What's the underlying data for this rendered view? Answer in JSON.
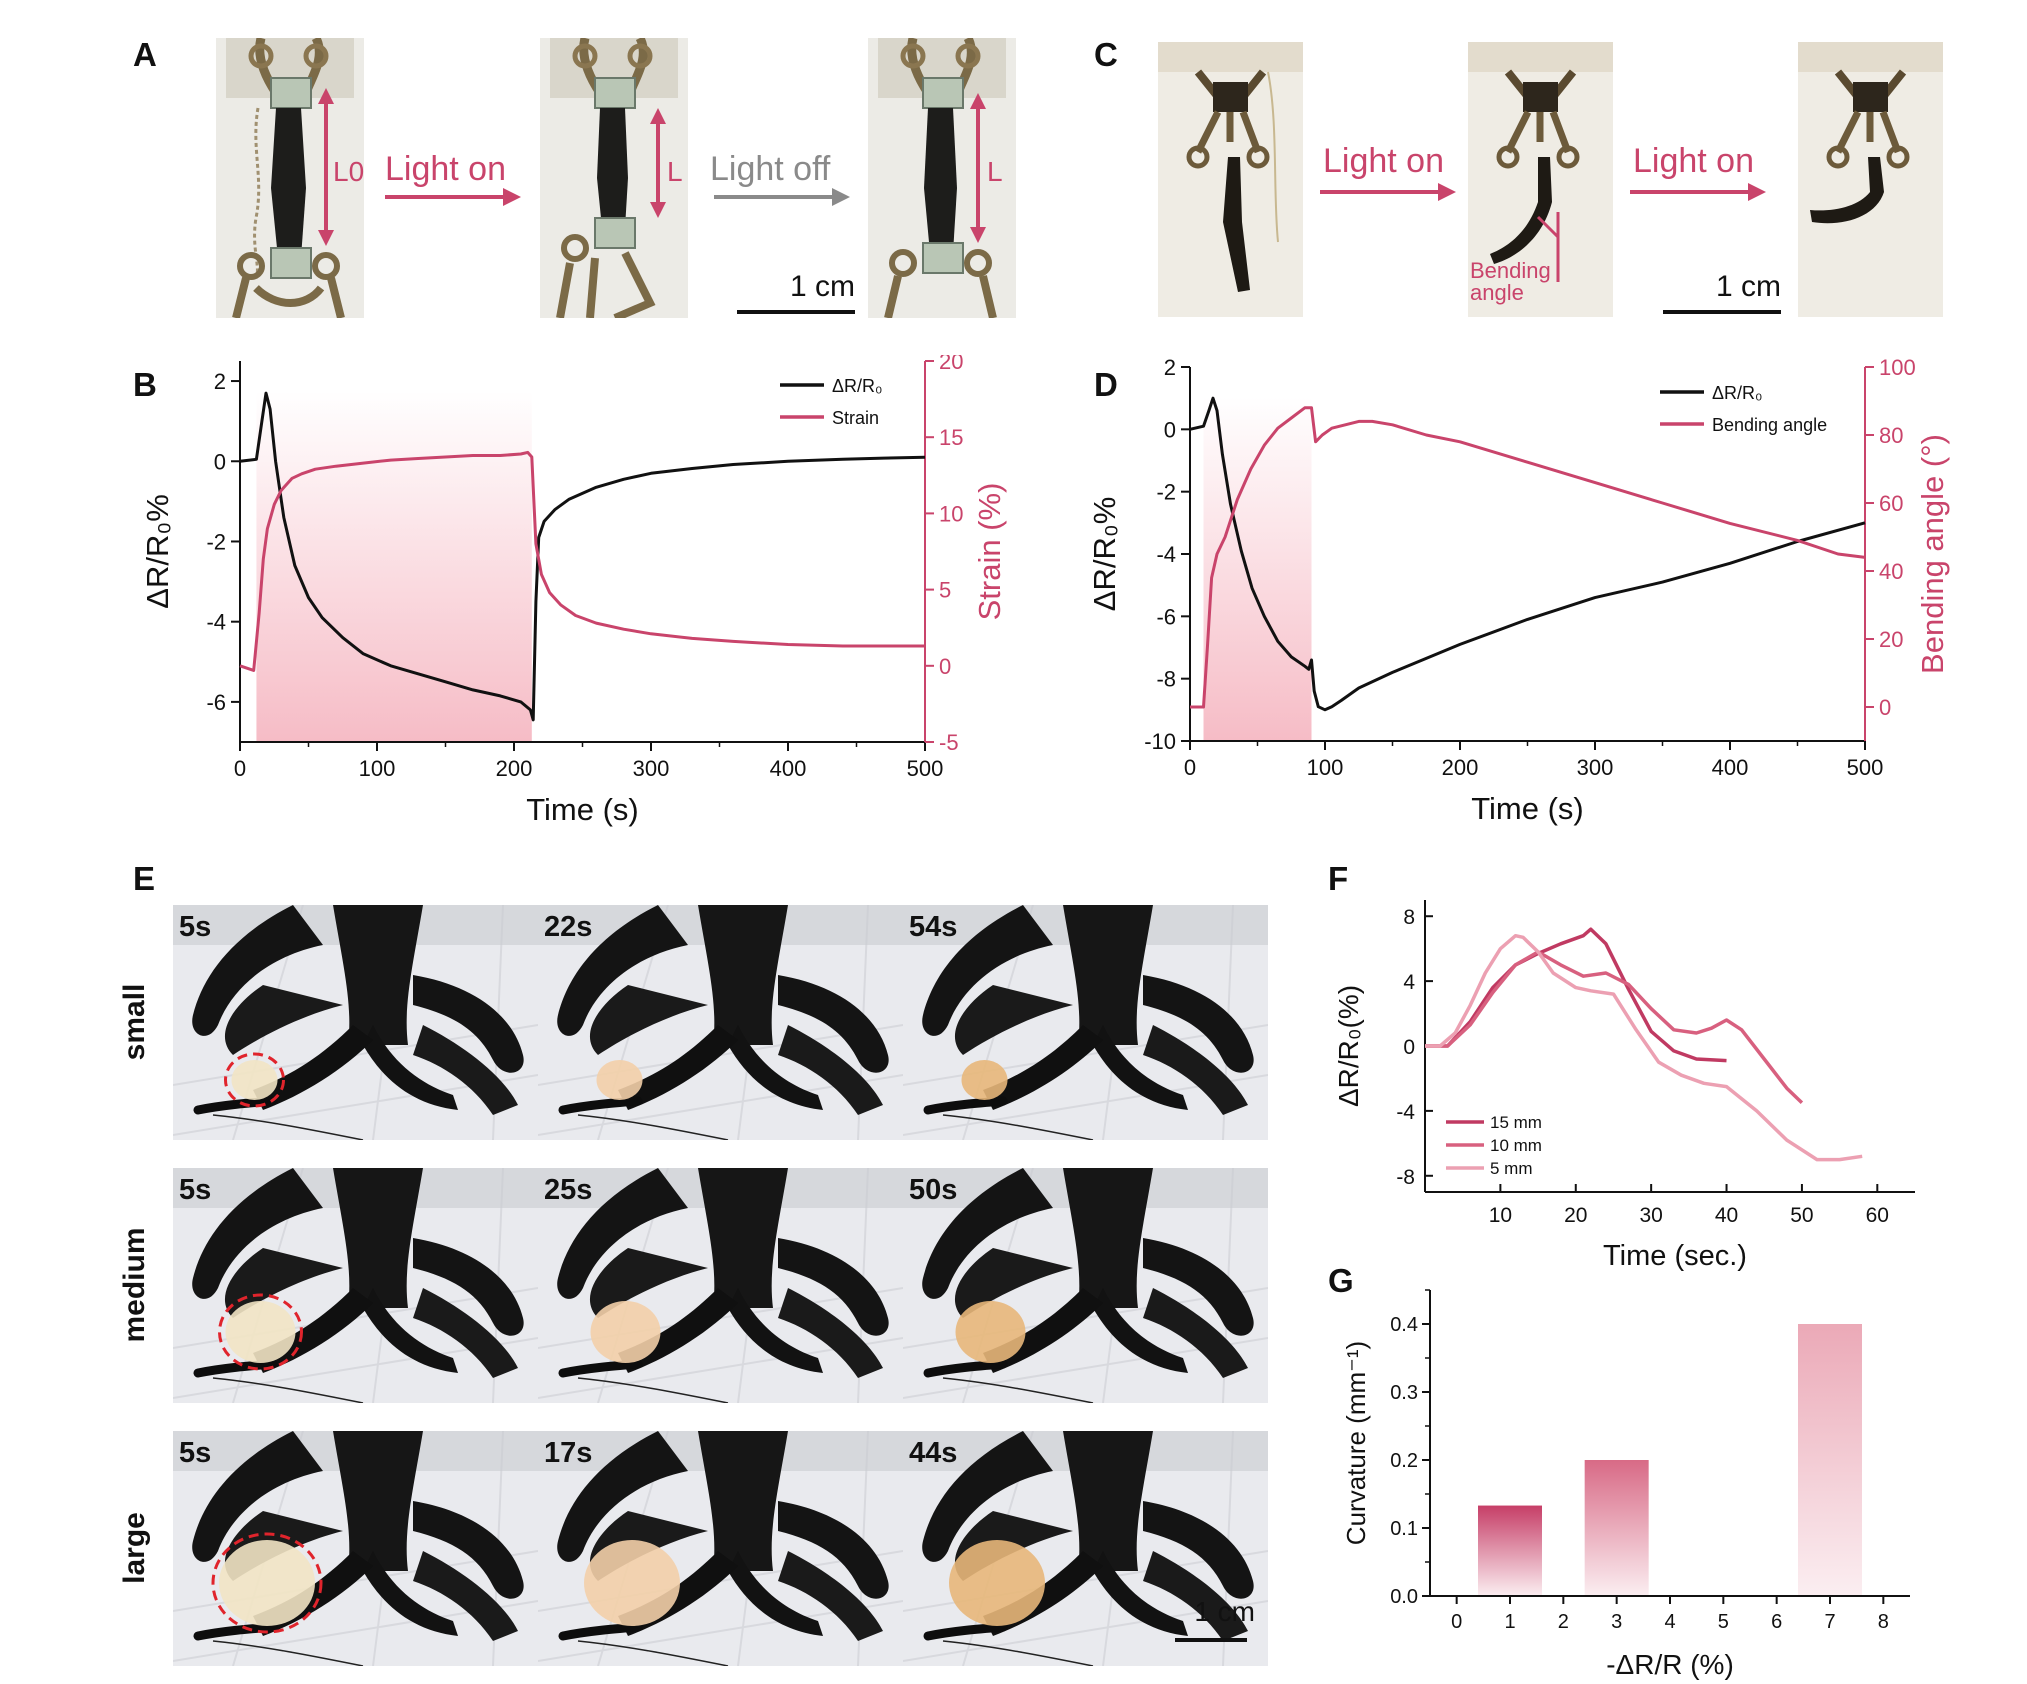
{
  "panels": {
    "A": {
      "label": "A",
      "length_labels": [
        "L0",
        "L",
        "L"
      ],
      "arrow1_label": "Light on",
      "arrow2_label": "Light off",
      "scalebar": "1 cm"
    },
    "C": {
      "label": "C",
      "arrow1_label": "Light on",
      "arrow2_label": "Light on",
      "bending_label": "Bending angle",
      "scalebar": "1 cm"
    },
    "E": {
      "label": "E",
      "rows": [
        {
          "name": "small",
          "times": [
            "5s",
            "22s",
            "54s"
          ]
        },
        {
          "name": "medium",
          "times": [
            "5s",
            "25s",
            "50s"
          ]
        },
        {
          "name": "large",
          "times": [
            "5s",
            "17s",
            "44s"
          ]
        }
      ],
      "scalebar": "1 cm"
    }
  },
  "colors": {
    "accent": "#c9446b",
    "black_series": "#111111",
    "light_on_arrow": "#c9446b",
    "light_off_arrow": "#8a8a8a",
    "shade": "#f6bcc6"
  },
  "chart_data": [
    {
      "id": "B",
      "panel_label": "B",
      "type": "line",
      "xlabel": "Time (s)",
      "ylabel_left": "ΔR/R₀%",
      "ylabel_right": "Strain (%)",
      "xlim": [
        0,
        500
      ],
      "ylim_left": [
        -7,
        2.5
      ],
      "ylim_right": [
        -5,
        20
      ],
      "xticks": [
        0,
        100,
        200,
        300,
        400,
        500
      ],
      "yticks_left": [
        -6,
        -4,
        -2,
        0,
        2
      ],
      "yticks_right": [
        -5,
        0,
        5,
        10,
        15,
        20
      ],
      "light_on_interval": [
        12,
        213
      ],
      "legend": [
        "ΔR/R₀",
        "Strain"
      ],
      "legend_position": "top-right",
      "series": [
        {
          "name": "ΔR/R₀",
          "axis": "left",
          "color": "#111111",
          "x": [
            0,
            12,
            16,
            19,
            22,
            26,
            32,
            40,
            50,
            60,
            75,
            90,
            110,
            130,
            150,
            170,
            190,
            205,
            212,
            214,
            216,
            218,
            222,
            230,
            240,
            260,
            280,
            300,
            330,
            360,
            400,
            440,
            470,
            500
          ],
          "y": [
            0,
            0.05,
            1.0,
            1.7,
            1.3,
            0.0,
            -1.4,
            -2.6,
            -3.4,
            -3.9,
            -4.4,
            -4.8,
            -5.1,
            -5.3,
            -5.5,
            -5.7,
            -5.85,
            -6.0,
            -6.2,
            -6.45,
            -3.5,
            -1.9,
            -1.5,
            -1.2,
            -0.95,
            -0.65,
            -0.45,
            -0.3,
            -0.18,
            -0.08,
            0.0,
            0.05,
            0.08,
            0.1
          ]
        },
        {
          "name": "Strain",
          "axis": "right",
          "color": "#c9446b",
          "x": [
            0,
            10,
            14,
            17,
            20,
            25,
            30,
            38,
            45,
            55,
            70,
            90,
            110,
            130,
            150,
            170,
            190,
            205,
            210,
            213,
            216,
            220,
            226,
            234,
            245,
            260,
            280,
            300,
            330,
            360,
            400,
            440,
            470,
            500
          ],
          "y": [
            0,
            -0.3,
            3.5,
            7.0,
            9.0,
            10.6,
            11.5,
            12.3,
            12.6,
            12.9,
            13.1,
            13.3,
            13.5,
            13.6,
            13.7,
            13.8,
            13.8,
            13.9,
            14.0,
            13.7,
            8.0,
            6.0,
            4.8,
            4.0,
            3.3,
            2.8,
            2.4,
            2.1,
            1.8,
            1.6,
            1.4,
            1.3,
            1.3,
            1.3
          ]
        }
      ]
    },
    {
      "id": "D",
      "panel_label": "D",
      "type": "line",
      "xlabel": "Time (s)",
      "ylabel_left": "ΔR/R₀%",
      "ylabel_right": "Bending angle (°)",
      "xlim": [
        0,
        500
      ],
      "ylim_left": [
        -10,
        2
      ],
      "ylim_right": [
        -10,
        100
      ],
      "xticks": [
        0,
        100,
        200,
        300,
        400,
        500
      ],
      "yticks_left": [
        -10,
        -8,
        -6,
        -4,
        -2,
        0,
        2
      ],
      "yticks_right": [
        0,
        20,
        40,
        60,
        80,
        100
      ],
      "light_on_interval": [
        10,
        90
      ],
      "legend": [
        "ΔR/R₀",
        "Bending angle"
      ],
      "legend_position": "top-right",
      "series": [
        {
          "name": "ΔR/R₀",
          "axis": "left",
          "color": "#111111",
          "x": [
            0,
            10,
            14,
            17,
            20,
            24,
            30,
            38,
            46,
            55,
            65,
            75,
            85,
            88,
            90,
            92,
            95,
            100,
            105,
            112,
            125,
            150,
            200,
            250,
            300,
            350,
            400,
            450,
            500
          ],
          "y": [
            0,
            0.1,
            0.6,
            1.0,
            0.6,
            -0.8,
            -2.4,
            -3.9,
            -5.1,
            -6.0,
            -6.8,
            -7.3,
            -7.6,
            -7.7,
            -7.4,
            -8.4,
            -8.9,
            -9.0,
            -8.9,
            -8.7,
            -8.3,
            -7.8,
            -6.9,
            -6.1,
            -5.4,
            -4.9,
            -4.3,
            -3.6,
            -3.0
          ]
        },
        {
          "name": "Bending angle",
          "axis": "right",
          "color": "#c9446b",
          "x": [
            0,
            10,
            13,
            16,
            20,
            26,
            35,
            45,
            55,
            65,
            75,
            85,
            90,
            93,
            98,
            105,
            115,
            125,
            135,
            150,
            175,
            200,
            250,
            300,
            350,
            400,
            450,
            480,
            500
          ],
          "y": [
            0,
            0,
            18,
            38,
            45,
            50,
            61,
            70,
            77,
            82,
            85,
            88,
            88,
            78,
            80,
            82,
            83,
            84,
            84,
            83,
            80,
            78,
            72,
            66,
            60,
            54,
            49,
            45,
            44
          ]
        }
      ]
    },
    {
      "id": "F",
      "panel_label": "F",
      "type": "line",
      "xlabel": "Time (sec.)",
      "ylabel": "ΔR/R₀(%)",
      "xlim": [
        0,
        65
      ],
      "ylim": [
        -9,
        9
      ],
      "xticks": [
        10,
        20,
        30,
        40,
        50,
        60
      ],
      "yticks": [
        -8,
        -4,
        0,
        4,
        8
      ],
      "legend": [
        "15 mm",
        "10 mm",
        "5 mm"
      ],
      "legend_position": "bottom-left",
      "series": [
        {
          "name": "15 mm",
          "color": "#c03a62",
          "x": [
            0,
            3,
            6,
            9,
            12,
            15,
            18,
            21,
            22,
            24,
            27,
            30,
            33,
            36,
            40
          ],
          "y": [
            0,
            0,
            1.5,
            3.6,
            5.0,
            5.7,
            6.3,
            6.8,
            7.2,
            6.3,
            3.5,
            0.9,
            -0.3,
            -0.8,
            -0.9
          ]
        },
        {
          "name": "10 mm",
          "color": "#d8607f",
          "x": [
            0,
            3,
            6,
            9,
            12,
            15,
            18,
            21,
            24,
            27,
            30,
            33,
            36,
            38,
            40,
            42,
            45,
            48,
            50
          ],
          "y": [
            0,
            0,
            1.3,
            3.3,
            5.0,
            5.8,
            5.0,
            4.3,
            4.5,
            3.8,
            2.3,
            1.0,
            0.8,
            1.1,
            1.6,
            1.0,
            -0.8,
            -2.6,
            -3.5
          ]
        },
        {
          "name": "5 mm",
          "color": "#eca0b2",
          "x": [
            0,
            2,
            4,
            6,
            8,
            10,
            12,
            13,
            15,
            17,
            20,
            22,
            25,
            28,
            31,
            34,
            37,
            40,
            44,
            48,
            52,
            55,
            58
          ],
          "y": [
            0,
            0,
            0.8,
            2.5,
            4.5,
            6.0,
            6.8,
            6.7,
            5.8,
            4.5,
            3.6,
            3.4,
            3.2,
            1.0,
            -1.0,
            -1.8,
            -2.3,
            -2.5,
            -4.0,
            -5.8,
            -7.0,
            -7.0,
            -6.8
          ]
        }
      ]
    },
    {
      "id": "G",
      "panel_label": "G",
      "type": "bar",
      "xlabel": "-ΔR/R (%)",
      "ylabel": "Curvature (mm⁻¹)",
      "xlim": [
        -0.5,
        8.5
      ],
      "ylim": [
        0,
        0.45
      ],
      "xticks": [
        0,
        1,
        2,
        3,
        4,
        5,
        6,
        7,
        8
      ],
      "yticks": [
        0.0,
        0.1,
        0.2,
        0.3,
        0.4
      ],
      "bars": [
        {
          "x": 1,
          "value": 0.133,
          "top_color": "#c63e67"
        },
        {
          "x": 3,
          "value": 0.2,
          "top_color": "#d86a86"
        },
        {
          "x": 7,
          "value": 0.4,
          "top_color": "#eba9b7"
        }
      ],
      "bar_width": 1.2
    }
  ]
}
